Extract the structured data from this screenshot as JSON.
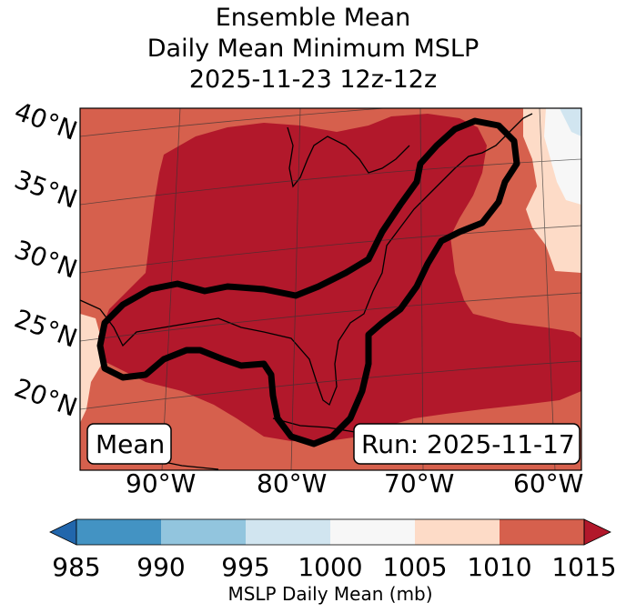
{
  "title": {
    "line1": "Ensemble Mean",
    "line2": "Daily Mean Minimum MSLP",
    "line3": "2025-11-23 12z-12z"
  },
  "map": {
    "lat_labels": [
      "40°N",
      "35°N",
      "30°N",
      "25°N",
      "20°N"
    ],
    "lon_labels": [
      "90°W",
      "80°W",
      "70°W",
      "60°W"
    ],
    "legend_box_left": "Mean",
    "legend_box_right": "Run: 2025-11-17",
    "contour_color": "#000000"
  },
  "colorbar": {
    "label": "MSLP Daily Mean (mb)",
    "ticks": [
      "985",
      "990",
      "995",
      "1000",
      "1005",
      "1010",
      "1015"
    ],
    "colors": [
      "#2166ac",
      "#4393c3",
      "#92c5de",
      "#d1e5f0",
      "#f7f7f7",
      "#fddbc7",
      "#d6604d",
      "#b2182b"
    ],
    "extend": "both"
  }
}
